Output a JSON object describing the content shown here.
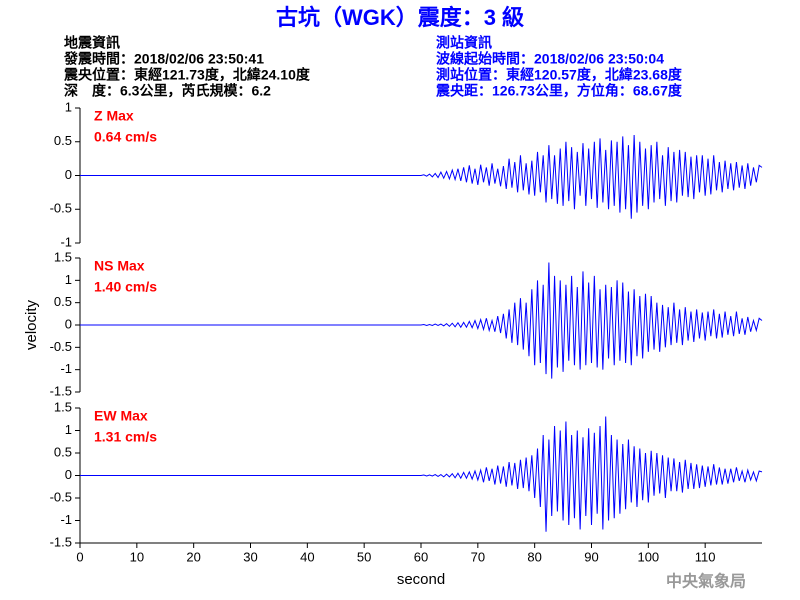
{
  "header": {
    "title": "古坑（WGK）震度：3 級",
    "left": [
      "地震資訊",
      "發震時間：2018/02/06 23:50:41",
      "震央位置：東經121.73度，北緯24.10度",
      "深　度：6.3公里，芮氏規模：6.2"
    ],
    "right": [
      "測站資訊",
      "波線起始時間：2018/02/06 23:50:04",
      "測站位置：東經120.57度，北緯23.68度",
      "震央距：126.73公里，方位角：68.67度"
    ],
    "footer": "中央氣象局"
  },
  "chart_data": [
    {
      "type": "line",
      "annotations": [
        "Z Max",
        "0.64 cm/s"
      ],
      "x": [
        0,
        60,
        60.5,
        61,
        61.5,
        62,
        62.5,
        63,
        63.5,
        64,
        64.5,
        65,
        65.5,
        66,
        66.5,
        67,
        67.5,
        68,
        68.5,
        69,
        69.5,
        70,
        70.5,
        71,
        71.5,
        72,
        72.5,
        73,
        73.5,
        74,
        74.5,
        75,
        75.5,
        76,
        76.5,
        77,
        77.5,
        78,
        78.5,
        79,
        79.5,
        80,
        80.5,
        81,
        81.5,
        82,
        82.5,
        83,
        83.5,
        84,
        84.5,
        85,
        85.5,
        86,
        86.5,
        87,
        87.5,
        88,
        88.5,
        89,
        89.5,
        90,
        90.5,
        91,
        91.5,
        92,
        92.5,
        93,
        93.5,
        94,
        94.5,
        95,
        95.5,
        96,
        96.5,
        97,
        97.5,
        98,
        98.5,
        99,
        99.5,
        100,
        100.5,
        101,
        101.5,
        102,
        102.5,
        103,
        103.5,
        104,
        104.5,
        105,
        105.5,
        106,
        106.5,
        107,
        107.5,
        108,
        108.5,
        109,
        109.5,
        110,
        110.5,
        111,
        111.5,
        112,
        112.5,
        113,
        113.5,
        114,
        114.5,
        115,
        115.5,
        116,
        116.5,
        117,
        117.5,
        118,
        118.5,
        119,
        119.5,
        120
      ],
      "series": [
        {
          "color": "#0000ff",
          "values": [
            0,
            0,
            0.01,
            -0.01,
            0.02,
            -0.02,
            0.03,
            -0.03,
            0.05,
            -0.04,
            0.06,
            -0.05,
            0.08,
            -0.06,
            0.1,
            -0.08,
            0.12,
            -0.1,
            0.15,
            -0.12,
            0.1,
            -0.14,
            0.16,
            -0.1,
            0.12,
            -0.15,
            0.18,
            -0.12,
            0.1,
            -0.16,
            0.14,
            -0.2,
            0.25,
            -0.18,
            0.2,
            -0.25,
            0.3,
            -0.22,
            0.18,
            -0.28,
            0.22,
            -0.3,
            0.35,
            -0.25,
            0.3,
            -0.4,
            0.45,
            -0.35,
            0.3,
            -0.42,
            0.4,
            -0.45,
            0.5,
            -0.38,
            0.42,
            -0.5,
            0.35,
            -0.3,
            0.48,
            -0.45,
            0.4,
            -0.35,
            0.5,
            -0.48,
            0.55,
            -0.4,
            0.38,
            -0.5,
            0.52,
            -0.45,
            0.5,
            -0.55,
            0.58,
            -0.5,
            0.45,
            -0.64,
            0.6,
            -0.55,
            0.5,
            -0.45,
            0.4,
            -0.5,
            0.45,
            -0.4,
            0.5,
            -0.35,
            0.3,
            -0.45,
            0.42,
            -0.38,
            0.35,
            -0.4,
            0.38,
            -0.3,
            0.35,
            -0.32,
            0.28,
            -0.35,
            0.3,
            -0.25,
            0.3,
            -0.3,
            0.25,
            -0.28,
            0.3,
            -0.22,
            0.2,
            -0.25,
            0.22,
            -0.2,
            0.18,
            -0.22,
            0.2,
            -0.18,
            0.15,
            -0.2,
            0.18,
            -0.15,
            0.12,
            -0.1,
            0.15,
            0.12
          ]
        }
      ],
      "xlim": [
        0,
        120
      ],
      "ylim": [
        -1,
        1
      ],
      "yticks": [
        -1,
        -0.5,
        0,
        0.5,
        1
      ]
    },
    {
      "type": "line",
      "annotations": [
        "NS Max",
        "1.40 cm/s"
      ],
      "ylabel": "velocity",
      "x": [
        0,
        60,
        60.5,
        61,
        61.5,
        62,
        62.5,
        63,
        63.5,
        64,
        64.5,
        65,
        65.5,
        66,
        66.5,
        67,
        67.5,
        68,
        68.5,
        69,
        69.5,
        70,
        70.5,
        71,
        71.5,
        72,
        72.5,
        73,
        73.5,
        74,
        74.5,
        75,
        75.5,
        76,
        76.5,
        77,
        77.5,
        78,
        78.5,
        79,
        79.5,
        80,
        80.5,
        81,
        81.5,
        82,
        82.5,
        83,
        83.5,
        84,
        84.5,
        85,
        85.5,
        86,
        86.5,
        87,
        87.5,
        88,
        88.5,
        89,
        89.5,
        90,
        90.5,
        91,
        91.5,
        92,
        92.5,
        93,
        93.5,
        94,
        94.5,
        95,
        95.5,
        96,
        96.5,
        97,
        97.5,
        98,
        98.5,
        99,
        99.5,
        100,
        100.5,
        101,
        101.5,
        102,
        102.5,
        103,
        103.5,
        104,
        104.5,
        105,
        105.5,
        106,
        106.5,
        107,
        107.5,
        108,
        108.5,
        109,
        109.5,
        110,
        110.5,
        111,
        111.5,
        112,
        112.5,
        113,
        113.5,
        114,
        114.5,
        115,
        115.5,
        116,
        116.5,
        117,
        117.5,
        118,
        118.5,
        119,
        119.5,
        120
      ],
      "series": [
        {
          "color": "#0000ff",
          "values": [
            0,
            0,
            0.01,
            -0.01,
            0.01,
            -0.01,
            0.02,
            -0.01,
            0.02,
            -0.02,
            0.03,
            -0.03,
            0.04,
            -0.04,
            0.05,
            -0.05,
            0.06,
            -0.05,
            0.08,
            -0.06,
            0.1,
            -0.08,
            0.12,
            -0.1,
            0.15,
            -0.12,
            0.1,
            -0.15,
            0.2,
            -0.18,
            0.25,
            -0.3,
            0.35,
            -0.4,
            0.5,
            -0.45,
            0.6,
            -0.55,
            0.5,
            -0.7,
            0.8,
            -0.9,
            1.0,
            -0.85,
            0.9,
            -1.1,
            1.4,
            -1.2,
            1.1,
            -0.95,
            1.0,
            -1.05,
            0.9,
            -0.8,
            1.1,
            -0.9,
            0.85,
            -1.0,
            1.2,
            -0.9,
            0.95,
            -0.85,
            1.1,
            -0.95,
            0.8,
            -1.0,
            0.9,
            -0.75,
            0.85,
            -0.9,
            1.0,
            -0.8,
            0.95,
            -0.85,
            0.75,
            -0.9,
            0.8,
            -0.7,
            0.65,
            -0.75,
            0.7,
            -0.6,
            0.65,
            -0.55,
            0.5,
            -0.6,
            0.45,
            -0.5,
            0.4,
            -0.45,
            0.5,
            -0.4,
            0.35,
            -0.45,
            0.4,
            -0.35,
            0.3,
            -0.38,
            0.35,
            -0.3,
            0.28,
            -0.35,
            0.3,
            -0.25,
            0.35,
            -0.3,
            0.25,
            -0.28,
            0.3,
            -0.22,
            0.2,
            -0.25,
            0.3,
            -0.2,
            0.15,
            -0.22,
            0.18,
            -0.15,
            0.1,
            -0.12,
            0.15,
            0.1
          ]
        }
      ],
      "xlim": [
        0,
        120
      ],
      "ylim": [
        -1.5,
        1.5
      ],
      "yticks": [
        -1.5,
        -1,
        -0.5,
        0,
        0.5,
        1,
        1.5
      ]
    },
    {
      "type": "line",
      "annotations": [
        "EW Max",
        "1.31 cm/s"
      ],
      "xlabel": "second",
      "x": [
        0,
        60,
        60.5,
        61,
        61.5,
        62,
        62.5,
        63,
        63.5,
        64,
        64.5,
        65,
        65.5,
        66,
        66.5,
        67,
        67.5,
        68,
        68.5,
        69,
        69.5,
        70,
        70.5,
        71,
        71.5,
        72,
        72.5,
        73,
        73.5,
        74,
        74.5,
        75,
        75.5,
        76,
        76.5,
        77,
        77.5,
        78,
        78.5,
        79,
        79.5,
        80,
        80.5,
        81,
        81.5,
        82,
        82.5,
        83,
        83.5,
        84,
        84.5,
        85,
        85.5,
        86,
        86.5,
        87,
        87.5,
        88,
        88.5,
        89,
        89.5,
        90,
        90.5,
        91,
        91.5,
        92,
        92.5,
        93,
        93.5,
        94,
        94.5,
        95,
        95.5,
        96,
        96.5,
        97,
        97.5,
        98,
        98.5,
        99,
        99.5,
        100,
        100.5,
        101,
        101.5,
        102,
        102.5,
        103,
        103.5,
        104,
        104.5,
        105,
        105.5,
        106,
        106.5,
        107,
        107.5,
        108,
        108.5,
        109,
        109.5,
        110,
        110.5,
        111,
        111.5,
        112,
        112.5,
        113,
        113.5,
        114,
        114.5,
        115,
        115.5,
        116,
        116.5,
        117,
        117.5,
        118,
        118.5,
        119,
        119.5,
        120
      ],
      "series": [
        {
          "color": "#0000ff",
          "values": [
            0,
            0,
            0.01,
            -0.01,
            0.01,
            -0.01,
            0.02,
            -0.02,
            0.02,
            -0.03,
            0.03,
            -0.03,
            0.04,
            -0.05,
            0.05,
            -0.06,
            0.07,
            -0.06,
            0.08,
            -0.08,
            0.1,
            -0.1,
            0.12,
            -0.15,
            0.18,
            -0.12,
            0.15,
            -0.2,
            0.22,
            -0.18,
            0.2,
            -0.25,
            0.3,
            -0.22,
            0.28,
            -0.3,
            0.35,
            -0.28,
            0.4,
            -0.35,
            0.45,
            -0.5,
            0.6,
            -0.7,
            0.9,
            -1.25,
            0.8,
            -0.9,
            1.1,
            -0.8,
            1.0,
            -1.0,
            1.2,
            -1.1,
            0.9,
            -0.95,
            1.0,
            -1.2,
            0.85,
            -0.9,
            1.05,
            -1.1,
            0.95,
            -0.85,
            1.1,
            -1.2,
            1.31,
            -1.0,
            0.9,
            -0.95,
            0.8,
            -0.85,
            0.7,
            -0.75,
            0.8,
            -0.6,
            0.65,
            -0.7,
            0.6,
            -0.55,
            0.5,
            -0.6,
            0.55,
            -0.45,
            0.5,
            -0.4,
            0.45,
            -0.5,
            0.4,
            -0.35,
            0.38,
            -0.35,
            0.3,
            -0.38,
            0.35,
            -0.3,
            0.28,
            -0.3,
            0.25,
            -0.28,
            0.22,
            -0.25,
            0.2,
            -0.22,
            0.25,
            -0.2,
            0.18,
            -0.2,
            0.15,
            -0.18,
            0.15,
            -0.15,
            0.18,
            -0.12,
            0.1,
            -0.15,
            0.12,
            -0.1,
            0.08,
            -0.12,
            0.1,
            0.08
          ]
        }
      ],
      "xlim": [
        0,
        120
      ],
      "ylim": [
        -1.5,
        1.5
      ],
      "yticks": [
        -1.5,
        -1,
        -0.5,
        0,
        0.5,
        1,
        1.5
      ],
      "xticks": [
        0,
        10,
        20,
        30,
        40,
        50,
        60,
        70,
        80,
        90,
        100,
        110
      ]
    }
  ]
}
